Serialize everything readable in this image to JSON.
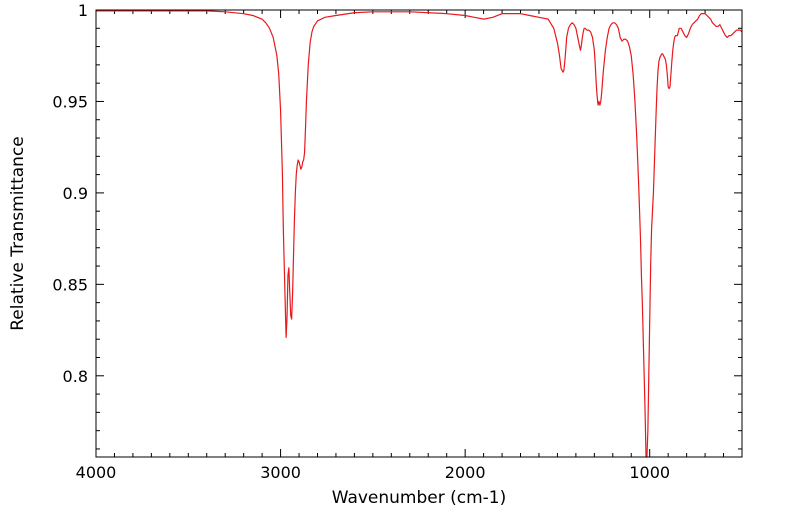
{
  "chart_data": {
    "type": "line",
    "title": "",
    "xlabel": "Wavenumber (cm-1)",
    "ylabel": "Relative Transmittance",
    "xlim": [
      4000,
      500
    ],
    "ylim": [
      0.7556,
      1.0
    ],
    "x_reversed": true,
    "grid": false,
    "legend": "none",
    "x_ticks": [
      4000,
      3000,
      2000,
      1000
    ],
    "x_tick_labels": [
      "4000",
      "3000",
      "2000",
      "1000"
    ],
    "y_ticks": [
      0.8,
      0.85,
      0.9,
      0.95,
      1.0
    ],
    "y_tick_labels": [
      "0.8",
      "0.85",
      "0.9",
      "0.95",
      "1"
    ],
    "series": [
      {
        "color": "#e8191d",
        "x": [
          4000,
          3800,
          3600,
          3400,
          3300,
          3200,
          3150,
          3100,
          3080,
          3060,
          3040,
          3020,
          3010,
          3000,
          2990,
          2985,
          2975,
          2970,
          2965,
          2960,
          2955,
          2950,
          2945,
          2940,
          2935,
          2930,
          2925,
          2920,
          2915,
          2910,
          2905,
          2900,
          2895,
          2890,
          2885,
          2880,
          2875,
          2870,
          2865,
          2860,
          2850,
          2840,
          2830,
          2820,
          2800,
          2780,
          2760,
          2700,
          2600,
          2500,
          2400,
          2300,
          2100,
          2000,
          1950,
          1900,
          1850,
          1800,
          1750,
          1700,
          1650,
          1600,
          1550,
          1520,
          1500,
          1490,
          1480,
          1470,
          1465,
          1460,
          1455,
          1450,
          1440,
          1430,
          1420,
          1410,
          1400,
          1390,
          1380,
          1375,
          1370,
          1365,
          1360,
          1355,
          1350,
          1340,
          1330,
          1320,
          1310,
          1300,
          1295,
          1290,
          1285,
          1280,
          1275,
          1270,
          1265,
          1260,
          1255,
          1250,
          1240,
          1230,
          1220,
          1210,
          1200,
          1190,
          1180,
          1170,
          1160,
          1150,
          1140,
          1130,
          1120,
          1110,
          1100,
          1090,
          1080,
          1070,
          1060,
          1050,
          1045,
          1040,
          1035,
          1030,
          1025,
          1020,
          1015,
          1010,
          1005,
          1000,
          995,
          990,
          985,
          980,
          975,
          970,
          965,
          960,
          955,
          950,
          945,
          940,
          935,
          930,
          925,
          920,
          915,
          910,
          905,
          900,
          895,
          890,
          885,
          880,
          875,
          870,
          865,
          860,
          850,
          840,
          830,
          820,
          810,
          800,
          790,
          780,
          770,
          760,
          750,
          740,
          730,
          720,
          710,
          700,
          690,
          680,
          670,
          660,
          650,
          640,
          630,
          620,
          610,
          600,
          590,
          580,
          570,
          560,
          550,
          540,
          530,
          520,
          510,
          500
        ],
        "y": [
          0.9995,
          0.9995,
          0.9995,
          0.9995,
          0.999,
          0.998,
          0.997,
          0.995,
          0.993,
          0.99,
          0.985,
          0.975,
          0.965,
          0.945,
          0.91,
          0.88,
          0.84,
          0.821,
          0.832,
          0.855,
          0.859,
          0.845,
          0.833,
          0.831,
          0.845,
          0.865,
          0.885,
          0.9,
          0.91,
          0.915,
          0.918,
          0.917,
          0.915,
          0.913,
          0.914,
          0.917,
          0.918,
          0.922,
          0.935,
          0.95,
          0.97,
          0.982,
          0.988,
          0.991,
          0.994,
          0.995,
          0.996,
          0.997,
          0.9985,
          0.999,
          0.999,
          0.999,
          0.998,
          0.997,
          0.996,
          0.995,
          0.996,
          0.998,
          0.998,
          0.998,
          0.997,
          0.996,
          0.995,
          0.99,
          0.982,
          0.976,
          0.968,
          0.966,
          0.967,
          0.972,
          0.978,
          0.985,
          0.99,
          0.992,
          0.993,
          0.992,
          0.99,
          0.985,
          0.98,
          0.978,
          0.981,
          0.985,
          0.988,
          0.99,
          0.99,
          0.989,
          0.989,
          0.988,
          0.985,
          0.978,
          0.97,
          0.96,
          0.953,
          0.948,
          0.95,
          0.948,
          0.95,
          0.955,
          0.962,
          0.968,
          0.978,
          0.985,
          0.99,
          0.992,
          0.993,
          0.993,
          0.992,
          0.99,
          0.985,
          0.983,
          0.984,
          0.984,
          0.983,
          0.98,
          0.975,
          0.965,
          0.95,
          0.93,
          0.905,
          0.875,
          0.855,
          0.84,
          0.82,
          0.8,
          0.78,
          0.7556,
          0.7556,
          0.77,
          0.8,
          0.83,
          0.86,
          0.88,
          0.89,
          0.9,
          0.915,
          0.93,
          0.945,
          0.958,
          0.967,
          0.972,
          0.974,
          0.975,
          0.976,
          0.976,
          0.975,
          0.974,
          0.973,
          0.97,
          0.965,
          0.958,
          0.957,
          0.958,
          0.965,
          0.972,
          0.978,
          0.982,
          0.985,
          0.986,
          0.986,
          0.99,
          0.99,
          0.988,
          0.986,
          0.985,
          0.987,
          0.99,
          0.992,
          0.993,
          0.994,
          0.995,
          0.997,
          0.998,
          0.998,
          0.998,
          0.997,
          0.996,
          0.995,
          0.993,
          0.992,
          0.991,
          0.991,
          0.992,
          0.99,
          0.988,
          0.986,
          0.985,
          0.986,
          0.986,
          0.987,
          0.988,
          0.989,
          0.989,
          0.989,
          0.988
        ]
      }
    ]
  }
}
